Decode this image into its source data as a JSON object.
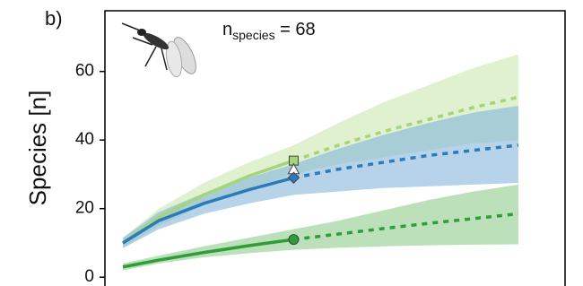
{
  "chart_data": {
    "type": "line",
    "panel_label": "b)",
    "ylabel": "Species [n]",
    "annotation": {
      "text": "n",
      "subscript": "species",
      "suffix": " = 68"
    },
    "x": [
      1,
      5,
      10,
      15,
      20,
      25,
      30,
      35,
      40,
      45
    ],
    "xlim": [
      -1,
      50.2
    ],
    "ylim": [
      -2.3,
      77.7
    ],
    "yticks": [
      0,
      20,
      40,
      60
    ],
    "series": [
      {
        "color": "#a6d47a",
        "band_color": "#c9e8ad",
        "values": [
          10,
          17.5,
          24,
          29.5,
          34,
          null,
          null,
          null,
          null,
          null
        ],
        "extrapolated": [
          null,
          null,
          null,
          null,
          34,
          38.5,
          42.5,
          46,
          49.5,
          52.5
        ],
        "lower": [
          8.5,
          15,
          21,
          26,
          30,
          33,
          35,
          37,
          39,
          40
        ],
        "upper": [
          11.5,
          20,
          27.5,
          33.5,
          38.5,
          45,
          51,
          56,
          61,
          65
        ]
      },
      {
        "color": "#2b7bba",
        "band_color": "#86b6dc",
        "values": [
          10,
          16.5,
          21.5,
          25.5,
          29,
          null,
          null,
          null,
          null,
          null
        ],
        "extrapolated": [
          null,
          null,
          null,
          null,
          29,
          31.5,
          33.5,
          35.5,
          37,
          38.5
        ],
        "lower": [
          8.5,
          14,
          18.5,
          21.5,
          24,
          25,
          26,
          26.5,
          27,
          27.5
        ],
        "upper": [
          11.5,
          19,
          24.5,
          29,
          33,
          37.5,
          41.5,
          45,
          48,
          50
        ]
      },
      {
        "color": "#2f9e3a",
        "band_color": "#8fcc8a",
        "values": [
          3,
          5,
          7.2,
          9.2,
          11,
          null,
          null,
          null,
          null,
          null
        ],
        "extrapolated": [
          null,
          null,
          null,
          null,
          11,
          12.6,
          14.2,
          15.7,
          17.1,
          18.5
        ],
        "lower": [
          2,
          4,
          5.8,
          7,
          8,
          8.6,
          9,
          9.3,
          9.5,
          9.6
        ],
        "upper": [
          4,
          6.3,
          9,
          11.5,
          14,
          16.5,
          19.5,
          22.5,
          25,
          27
        ]
      }
    ],
    "markers": [
      {
        "x": 20,
        "y": 34,
        "shape": "square",
        "color": "#a6d47a"
      },
      {
        "x": 20,
        "y": 31.5,
        "shape": "triangle",
        "color": "#ffffff"
      },
      {
        "x": 20,
        "y": 29,
        "shape": "diamond",
        "color": "#2b7bba"
      },
      {
        "x": 20,
        "y": 11,
        "shape": "circle",
        "color": "#2f9e3a"
      }
    ]
  }
}
